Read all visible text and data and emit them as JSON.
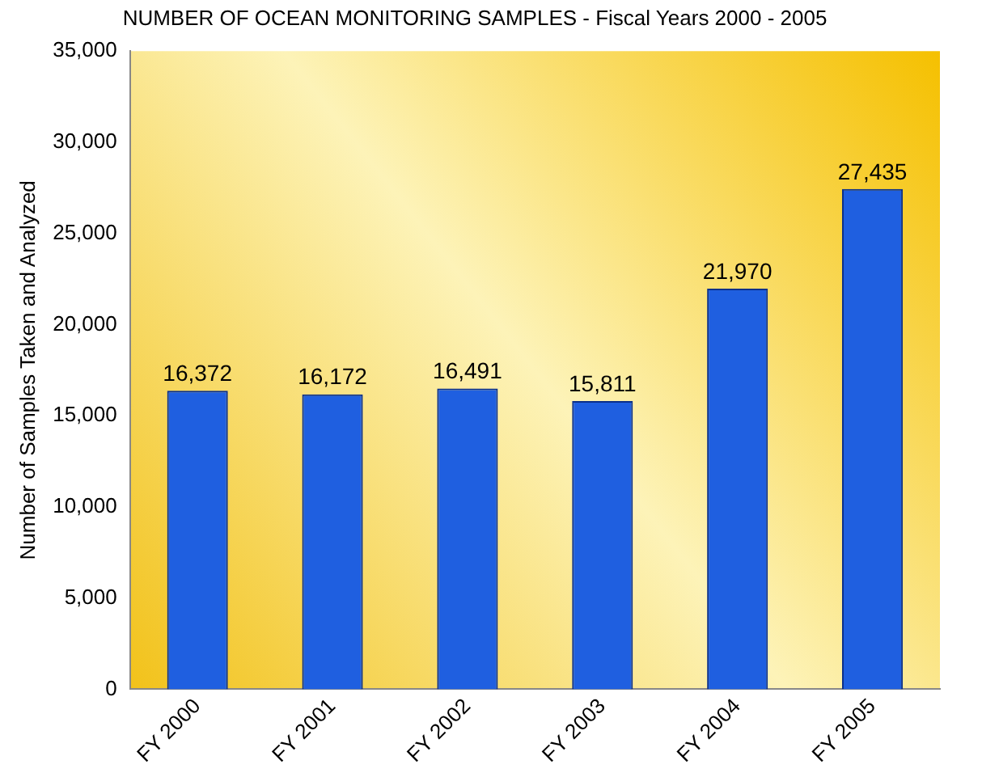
{
  "chart_data": {
    "type": "bar",
    "title": "NUMBER OF OCEAN MONITORING SAMPLES - Fiscal Years 2000 - 2005",
    "ylabel": "Number of Samples Taken and Analyzed",
    "categories": [
      "FY 2000",
      "FY 2001",
      "FY 2002",
      "FY 2003",
      "FY 2004",
      "FY 2005"
    ],
    "values": [
      16372,
      16172,
      16491,
      15811,
      21970,
      27435
    ],
    "value_labels": [
      "16,372",
      "16,172",
      "16,491",
      "15,811",
      "21,970",
      "27,435"
    ],
    "color": "#1f5fe0",
    "ylim": [
      0,
      35000
    ],
    "yticks": [
      0,
      {
        "value": 5000,
        "label": "5,000"
      },
      {
        "value": 10000,
        "label": "10,000"
      },
      {
        "value": 15000,
        "label": "15,000"
      },
      {
        "value": 20000,
        "label": "20,000"
      },
      {
        "value": 25000,
        "label": "25,000"
      },
      {
        "value": 30000,
        "label": "30,000"
      },
      {
        "value": 35000,
        "label": "35,000"
      }
    ],
    "grid": false,
    "legend": false
  }
}
